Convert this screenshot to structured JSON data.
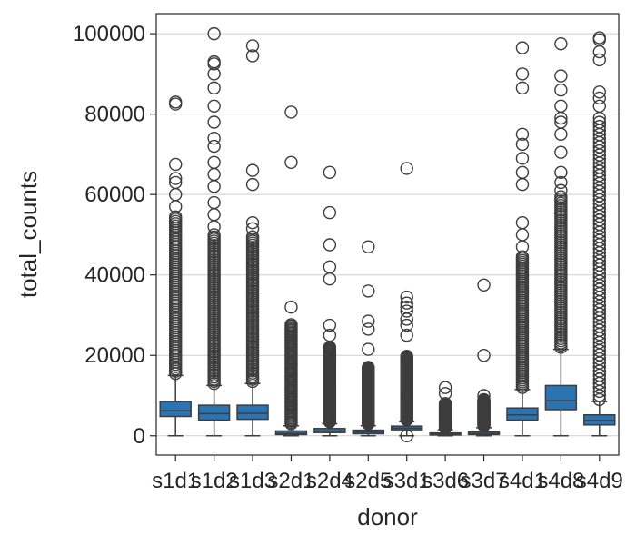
{
  "chart_data": {
    "type": "box",
    "xlabel": "donor",
    "ylabel": "total_counts",
    "ylim": [
      -4800,
      105000
    ],
    "yticks": [
      0,
      20000,
      40000,
      60000,
      80000,
      100000
    ],
    "grid": "horizontal",
    "colors": {
      "box": "#2a74b4",
      "line": "#3d3d3d",
      "grid": "#cfcfcf"
    },
    "categories": [
      "s1d1",
      "s1d2",
      "s1d3",
      "s2d1",
      "s2d4",
      "s2d5",
      "s3d1",
      "s3d6",
      "s3d7",
      "s4d1",
      "s4d8",
      "s4d9"
    ],
    "boxes": [
      {
        "whisker_low": 0,
        "q1": 4800,
        "median": 6200,
        "q3": 8500,
        "whisker_high": 15000,
        "outlier_range": [
          15500,
          55000
        ],
        "outliers": [
          57000,
          60000,
          63000,
          64000,
          67500,
          82500,
          83000
        ]
      },
      {
        "whisker_low": 0,
        "q1": 3900,
        "median": 5500,
        "q3": 7600,
        "whisker_high": 12500,
        "outlier_range": [
          13000,
          50000
        ],
        "outliers": [
          52000,
          55000,
          58000,
          62000,
          65000,
          68000,
          72000,
          74000,
          78000,
          82000,
          86500,
          90000,
          92500,
          93000,
          100000
        ]
      },
      {
        "whisker_low": 0,
        "q1": 4100,
        "median": 5600,
        "q3": 7600,
        "whisker_high": 13000,
        "outlier_range": [
          13500,
          50000
        ],
        "outliers": [
          51500,
          53000,
          62500,
          66000,
          94500,
          97000
        ]
      },
      {
        "whisker_low": 0,
        "q1": 300,
        "median": 600,
        "q3": 1200,
        "whisker_high": 2500,
        "outlier_range": [
          3000,
          28000
        ],
        "outliers": [
          32000,
          68000,
          80500
        ]
      },
      {
        "whisker_low": 0,
        "q1": 800,
        "median": 1200,
        "q3": 1800,
        "whisker_high": 3000,
        "outlier_range": [
          3500,
          22000
        ],
        "outliers": [
          25000,
          27500,
          39000,
          42000,
          47500,
          55500,
          65500
        ]
      },
      {
        "whisker_low": 0,
        "q1": 500,
        "median": 900,
        "q3": 1400,
        "whisker_high": 2500,
        "outlier_range": [
          3000,
          17000
        ],
        "outliers": [
          21500,
          26500,
          28500,
          36000,
          47000
        ]
      },
      {
        "whisker_low": 0,
        "q1": 1500,
        "median": 1900,
        "q3": 2400,
        "whisker_high": 3500,
        "outlier_range": [
          4000,
          20000
        ],
        "outliers": [
          0,
          25000,
          27500,
          29000,
          31000,
          32000,
          33000,
          34500,
          66500
        ]
      },
      {
        "whisker_low": 0,
        "q1": 200,
        "median": 400,
        "q3": 700,
        "whisker_high": 1500,
        "outlier_range": [
          2000,
          8000
        ],
        "outliers": [
          10500,
          12000
        ]
      },
      {
        "whisker_low": 0,
        "q1": 300,
        "median": 600,
        "q3": 1000,
        "whisker_high": 2000,
        "outlier_range": [
          2500,
          9000
        ],
        "outliers": [
          10000,
          20000,
          37500
        ]
      },
      {
        "whisker_low": 0,
        "q1": 3900,
        "median": 5200,
        "q3": 6900,
        "whisker_high": 11500,
        "outlier_range": [
          12000,
          45000
        ],
        "outliers": [
          47000,
          50000,
          53000,
          62500,
          65500,
          69000,
          72500,
          75000,
          86500,
          90000,
          96500
        ]
      },
      {
        "whisker_low": 0,
        "q1": 6500,
        "median": 8700,
        "q3": 12500,
        "whisker_high": 21500,
        "outlier_range": [
          22000,
          60000
        ],
        "outliers": [
          61000,
          63000,
          65500,
          70500,
          75000,
          78000,
          79000,
          82000,
          86000,
          89500,
          97500
        ]
      },
      {
        "whisker_low": 0,
        "q1": 2700,
        "median": 3800,
        "q3": 5200,
        "whisker_high": 8500,
        "outlier_range": [
          9000,
          80000
        ],
        "outliers": [
          82000,
          84000,
          85500,
          93500,
          95500,
          98500,
          99000
        ]
      }
    ]
  }
}
